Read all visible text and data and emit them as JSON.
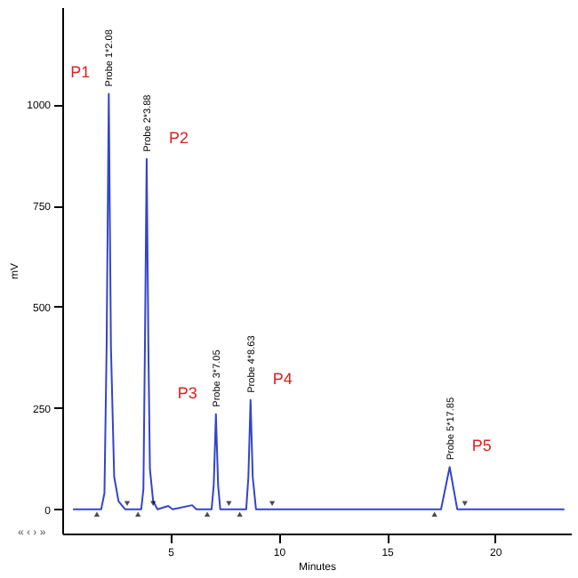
{
  "chart_data": {
    "type": "line",
    "xlabel": "Minutes",
    "ylabel": "mV",
    "xlim": [
      0,
      23.5
    ],
    "ylim": [
      -60,
      1240
    ],
    "xticks": [
      5,
      10,
      15,
      20
    ],
    "yticks": [
      0,
      250,
      500,
      750,
      1000
    ],
    "grid": false,
    "series": [
      {
        "color": "#3344cc",
        "marker": "none",
        "x": [
          0.5,
          1.8,
          1.95,
          2.05,
          2.15,
          2.25,
          2.4,
          2.6,
          2.9,
          3.65,
          3.75,
          3.82,
          3.9,
          3.98,
          4.05,
          4.2,
          4.4,
          4.9,
          5.1,
          6.0,
          6.2,
          6.9,
          7.0,
          7.1,
          7.2,
          7.3,
          8.5,
          8.6,
          8.7,
          8.8,
          8.95,
          17.5,
          17.9,
          18.25,
          23.2
        ],
        "values": [
          0,
          0,
          40,
          400,
          1026,
          400,
          80,
          20,
          0,
          0,
          50,
          400,
          865,
          400,
          100,
          20,
          0,
          8,
          0,
          10,
          0,
          0,
          60,
          235,
          60,
          0,
          0,
          80,
          270,
          80,
          0,
          0,
          104,
          0,
          0
        ]
      },
      {
        "type": "scatter",
        "color": "#000000",
        "marker": "triangle",
        "x": [
          1.6,
          3.5,
          6.7,
          8.2,
          17.2
        ],
        "values": [
          -12,
          -12,
          -12,
          -12,
          -12
        ]
      },
      {
        "type": "scatter",
        "color": "#000000",
        "marker": "triangle-down",
        "x": [
          3.0,
          4.2,
          7.7,
          9.7,
          18.6
        ],
        "values": [
          14,
          14,
          14,
          14,
          14
        ]
      }
    ],
    "annotations": [
      {
        "text": "Probe 1*2.08",
        "x": 2.15,
        "y": 1026
      },
      {
        "text": "P1",
        "x": 2.15,
        "y": 1026
      },
      {
        "text": "Probe 2*3.88",
        "x": 3.9,
        "y": 865
      },
      {
        "text": "P2",
        "x": 3.9,
        "y": 865
      },
      {
        "text": "Probe 3*7.05",
        "x": 7.1,
        "y": 235
      },
      {
        "text": "P3",
        "x": 7.1,
        "y": 235
      },
      {
        "text": "Probe 4*8.63",
        "x": 8.7,
        "y": 270
      },
      {
        "text": "P4",
        "x": 8.7,
        "y": 270
      },
      {
        "text": "Probe 5*17.85",
        "x": 17.9,
        "y": 104
      },
      {
        "text": "P5",
        "x": 17.9,
        "y": 104
      },
      "« ‹ › »"
    ]
  }
}
